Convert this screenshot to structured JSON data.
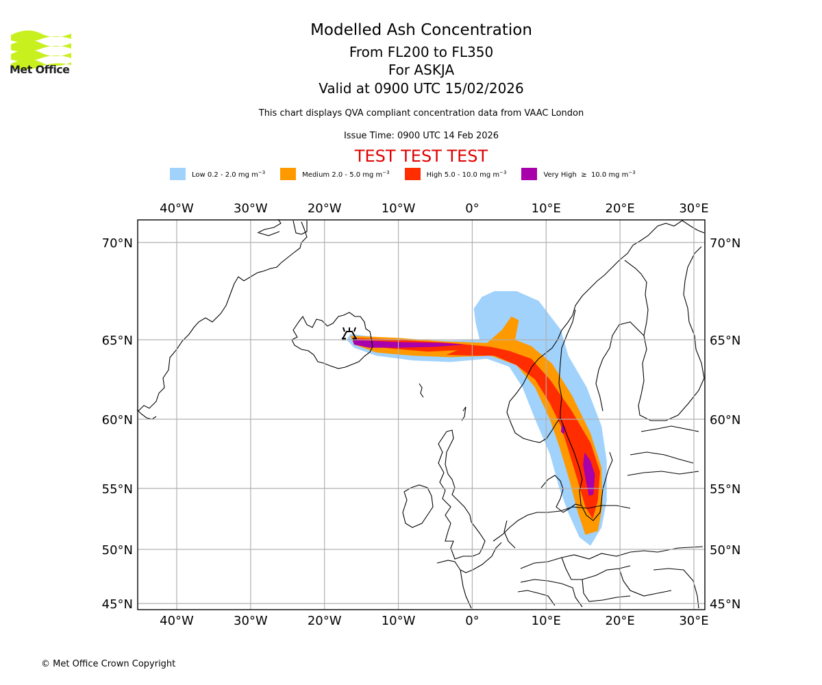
{
  "logo": {
    "text": "Met Office",
    "color": "#c8f01e"
  },
  "header": {
    "title": "Modelled Ash Concentration",
    "levels": "From FL200 to FL350",
    "volcano": "For ASKJA",
    "valid": "Valid at 0900 UTC 15/02/2026",
    "description": "This chart displays QVA compliant concentration data from VAAC London",
    "issue_time": "Issue Time: 0900 UTC 14 Feb 2026",
    "test_banner": "TEST TEST TEST"
  },
  "legend": [
    {
      "label": "Low 0.2 - 2.0 mg m",
      "exp": "−3",
      "color": "#a0d2fc"
    },
    {
      "label": "Medium 2.0 - 5.0 mg m",
      "exp": "−3",
      "color": "#ff9900"
    },
    {
      "label": "High 5.0 - 10.0 mg m",
      "exp": "−3",
      "color": "#ff2d00"
    },
    {
      "label": "Very High  ≥  10.0 mg m",
      "exp": "−3",
      "color": "#a800aa"
    }
  ],
  "chart_data": {
    "type": "map",
    "title": "Modelled Ash Concentration",
    "lon_range": [
      -45,
      31
    ],
    "lat_range": [
      44.5,
      71.5
    ],
    "lon_ticks": [
      {
        "value": -40,
        "label": "40°W"
      },
      {
        "value": -30,
        "label": "30°W"
      },
      {
        "value": -20,
        "label": "20°W"
      },
      {
        "value": -10,
        "label": "10°W"
      },
      {
        "value": 0,
        "label": "0°"
      },
      {
        "value": 10,
        "label": "10°E"
      },
      {
        "value": 20,
        "label": "20°E"
      },
      {
        "value": 30,
        "label": "30°E"
      }
    ],
    "lat_ticks": [
      {
        "value": 70,
        "label": "70°N"
      },
      {
        "value": 65,
        "label": "65°N"
      },
      {
        "value": 60,
        "label": "60°N"
      },
      {
        "value": 55,
        "label": "55°N"
      },
      {
        "value": 50,
        "label": "50°N"
      },
      {
        "value": 45,
        "label": "45°N"
      }
    ],
    "grid": true,
    "volcano": {
      "name": "ASKJA",
      "lon": -16.7,
      "lat": 65.0
    },
    "ash_levels": [
      {
        "level": "Low",
        "color": "#a0d2fc",
        "polygon": [
          [
            -16.5,
            65.3
          ],
          [
            -10,
            65.0
          ],
          [
            -3,
            64.95
          ],
          [
            1,
            65.0
          ],
          [
            0.5,
            65.8
          ],
          [
            0.2,
            66.6
          ],
          [
            1.3,
            67.2
          ],
          [
            3,
            67.5
          ],
          [
            6,
            67.5
          ],
          [
            9,
            67.0
          ],
          [
            12,
            65.5
          ],
          [
            13,
            64
          ],
          [
            15.5,
            62
          ],
          [
            17.5,
            59.5
          ],
          [
            18.2,
            57
          ],
          [
            18.2,
            54
          ],
          [
            17.5,
            51.8
          ],
          [
            16,
            50.3
          ],
          [
            14.5,
            51
          ],
          [
            13,
            53
          ],
          [
            11.8,
            55
          ],
          [
            10.5,
            57.5
          ],
          [
            8.5,
            60
          ],
          [
            6.8,
            62
          ],
          [
            5,
            63.3
          ],
          [
            2,
            63.8
          ],
          [
            -3,
            63.6
          ],
          [
            -8,
            63.7
          ],
          [
            -13,
            64.0
          ],
          [
            -16,
            64.5
          ],
          [
            -17,
            65.0
          ]
        ]
      },
      {
        "level": "Medium",
        "color": "#ff9900",
        "polygon": [
          [
            -16.5,
            65.2
          ],
          [
            -10,
            65.1
          ],
          [
            -4,
            64.9
          ],
          [
            2,
            64.8
          ],
          [
            4,
            65.5
          ],
          [
            5.3,
            66.2
          ],
          [
            6.3,
            66.0
          ],
          [
            5.8,
            65.0
          ],
          [
            8,
            64.6
          ],
          [
            10.8,
            63.5
          ],
          [
            13.5,
            61.5
          ],
          [
            16,
            59
          ],
          [
            17.5,
            56.5
          ],
          [
            17.6,
            53.5
          ],
          [
            17,
            51.5
          ],
          [
            15.3,
            51.2
          ],
          [
            14.3,
            53
          ],
          [
            13.2,
            55.5
          ],
          [
            11.8,
            58
          ],
          [
            10.5,
            60
          ],
          [
            8.5,
            62
          ],
          [
            6,
            63.4
          ],
          [
            2.5,
            64.0
          ],
          [
            -3,
            63.9
          ],
          [
            -8,
            64.0
          ],
          [
            -13,
            64.2
          ],
          [
            -16,
            64.7
          ]
        ]
      },
      {
        "level": "High",
        "color": "#ff2d00",
        "polygon": [
          [
            -16.3,
            65.1
          ],
          [
            -10,
            65.0
          ],
          [
            -3,
            64.8
          ],
          [
            2.5,
            64.55
          ],
          [
            5,
            64.3
          ],
          [
            8,
            63.8
          ],
          [
            10.5,
            62.5
          ],
          [
            13.5,
            60.5
          ],
          [
            16,
            58.3
          ],
          [
            17.3,
            56.2
          ],
          [
            17,
            54
          ],
          [
            16.3,
            52.5
          ],
          [
            15.3,
            53.5
          ],
          [
            14.3,
            55.5
          ],
          [
            13,
            57.8
          ],
          [
            12,
            59.5
          ],
          [
            10.5,
            61
          ],
          [
            8.5,
            62.5
          ],
          [
            6,
            63.4
          ],
          [
            3,
            64.0
          ],
          [
            0,
            64.0
          ],
          [
            -3.5,
            64.05
          ],
          [
            -2,
            64.35
          ],
          [
            -6,
            64.25
          ],
          [
            -11,
            64.45
          ],
          [
            -15.5,
            64.7
          ]
        ]
      },
      {
        "level": "Very High",
        "color": "#a800aa",
        "polygon": [
          [
            -16.2,
            65.0
          ],
          [
            -10,
            64.85
          ],
          [
            -4,
            64.8
          ],
          [
            -1,
            64.7
          ],
          [
            -5,
            64.55
          ],
          [
            -10,
            64.5
          ],
          [
            -14,
            64.5
          ],
          [
            -16.0,
            64.7
          ]
        ]
      },
      {
        "level": "Very High",
        "color": "#a800aa",
        "polygon": [
          [
            15.2,
            57.6
          ],
          [
            16.0,
            57.0
          ],
          [
            16.6,
            56.0
          ],
          [
            16.4,
            54.5
          ],
          [
            15.8,
            54.4
          ],
          [
            15.4,
            55.5
          ],
          [
            15.0,
            56.7
          ]
        ]
      },
      {
        "level": "Very High",
        "color": "#a800aa",
        "polygon": [
          [
            12.1,
            59.6
          ],
          [
            12.6,
            59.4
          ],
          [
            12.4,
            58.9
          ],
          [
            12.0,
            59.1
          ]
        ]
      }
    ]
  },
  "footer": {
    "copyright": "© Met Office Crown Copyright"
  }
}
